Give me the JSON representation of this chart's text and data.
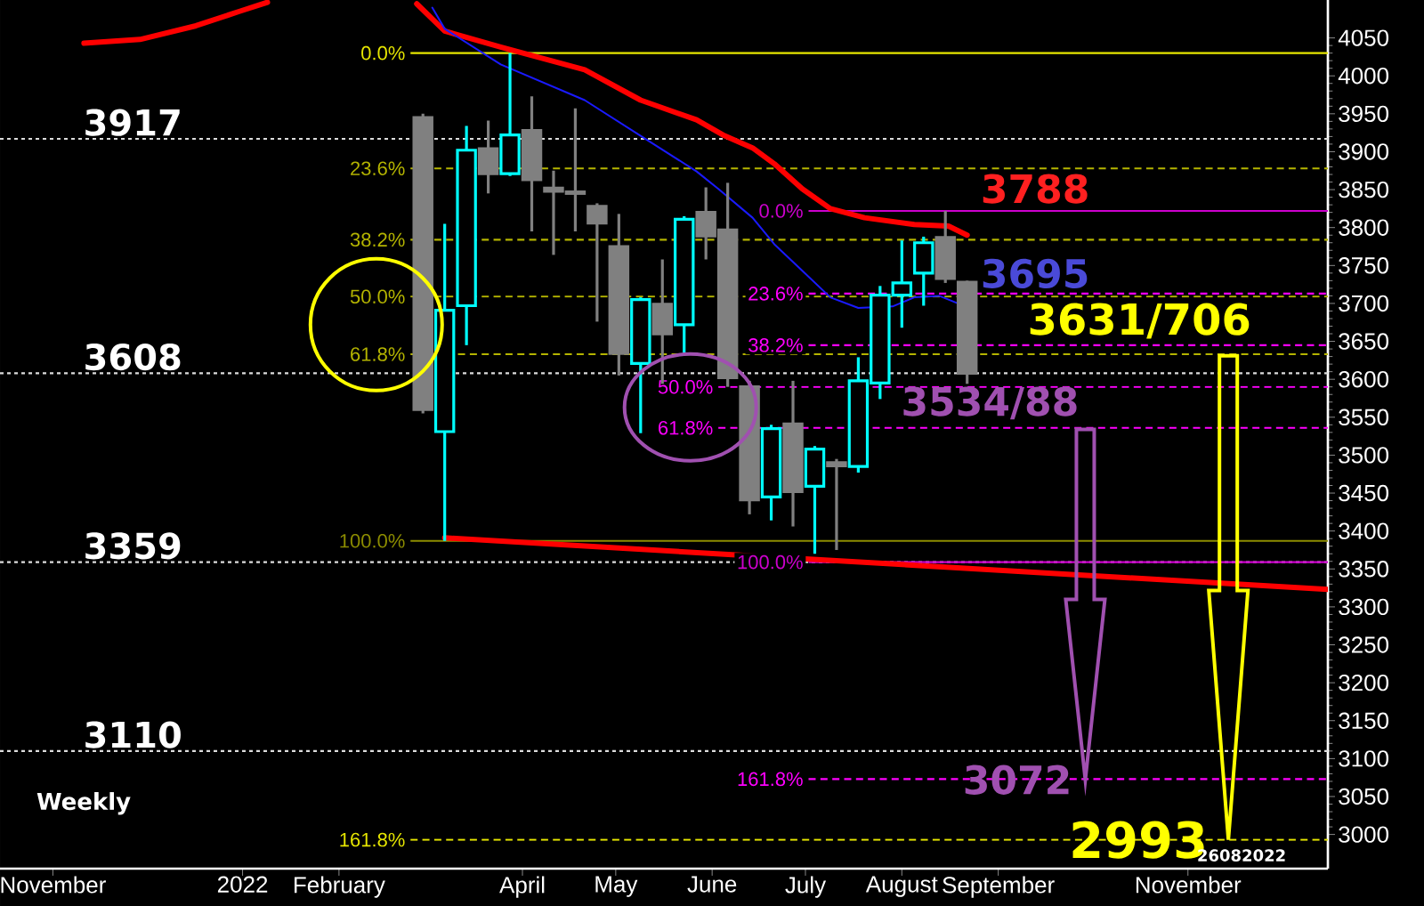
{
  "chart_data": {
    "type": "candlestick",
    "x": [
      "2022-02-28",
      "2022-03-07",
      "2022-03-14",
      "2022-03-21",
      "2022-03-28",
      "2022-04-04",
      "2022-04-11",
      "2022-04-18",
      "2022-04-25",
      "2022-05-02",
      "2022-05-09",
      "2022-05-16",
      "2022-05-23",
      "2022-05-30",
      "2022-06-06",
      "2022-06-13",
      "2022-06-20",
      "2022-06-27",
      "2022-07-04",
      "2022-07-11",
      "2022-07-18",
      "2022-07-25",
      "2022-08-01",
      "2022-08-08",
      "2022-08-15",
      "2022-08-22"
    ],
    "ohlc": [
      [
        3945,
        3950,
        3555,
        3560
      ],
      [
        3531,
        3805,
        3387,
        3691
      ],
      [
        3697,
        3934,
        3645,
        3902
      ],
      [
        3904,
        3941,
        3845,
        3871
      ],
      [
        3871,
        4030,
        3868,
        3922
      ],
      [
        3928,
        3973,
        3795,
        3863
      ],
      [
        3852,
        3875,
        3764,
        3848
      ],
      [
        3847,
        3957,
        3795,
        3845
      ],
      [
        3828,
        3832,
        3676,
        3806
      ],
      [
        3775,
        3818,
        3605,
        3634
      ],
      [
        3621,
        3708,
        3529,
        3705
      ],
      [
        3699,
        3758,
        3594,
        3660
      ],
      [
        3672,
        3815,
        3634,
        3811
      ],
      [
        3820,
        3853,
        3758,
        3789
      ],
      [
        3797,
        3859,
        3590,
        3602
      ],
      [
        3590,
        3598,
        3422,
        3441
      ],
      [
        3445,
        3540,
        3414,
        3535
      ],
      [
        3541,
        3598,
        3406,
        3452
      ],
      [
        3459,
        3512,
        3370,
        3508
      ],
      [
        3490,
        3495,
        3375,
        3486
      ],
      [
        3485,
        3629,
        3477,
        3598
      ],
      [
        3595,
        3723,
        3574,
        3711
      ],
      [
        3711,
        3783,
        3668,
        3727
      ],
      [
        3740,
        3788,
        3697,
        3780
      ],
      [
        3787,
        3822,
        3727,
        3733
      ],
      [
        3728,
        3730,
        3594,
        3608
      ]
    ],
    "colors": [
      "#808080",
      "#00ffff",
      "#00ffff",
      "#808080",
      "#00ffff",
      "#808080",
      "#808080",
      "#808080",
      "#808080",
      "#808080",
      "#00ffff",
      "#808080",
      "#00ffff",
      "#808080",
      "#808080",
      "#808080",
      "#00ffff",
      "#808080",
      "#00ffff",
      "#808080",
      "#00ffff",
      "#00ffff",
      "#00ffff",
      "#00ffff",
      "#808080",
      "#808080"
    ],
    "series": [
      {
        "type": "line",
        "color": "#ff0000",
        "x": [
          "2021-11-11",
          "2021-11-29",
          "2021-12-17",
          "2021-12-31",
          "2022-01-09",
          "2022-01-31",
          "2022-02-26",
          "2022-03-07",
          "2022-03-25",
          "2022-04-21",
          "2022-05-09",
          "2022-05-27",
          "2022-06-05",
          "2022-06-14",
          "2022-06-21",
          "2022-06-30",
          "2022-07-09",
          "2022-07-20",
          "2022-08-05",
          "2022-08-16",
          "2022-08-22"
        ],
        "values": [
          4043,
          4048,
          4066,
          4085,
          4097,
          null,
          4095,
          4059,
          4038,
          4008,
          3968,
          3942,
          3921,
          3905,
          3884,
          3851,
          3825,
          3813,
          3804,
          3802,
          3790
        ]
      },
      {
        "type": "line",
        "color": "#1a1aff",
        "x": [
          "2022-03-03",
          "2022-03-07",
          "2022-03-25",
          "2022-04-21",
          "2022-05-09",
          "2022-05-27",
          "2022-06-03",
          "2022-06-14",
          "2022-06-21",
          "2022-06-30",
          "2022-07-09",
          "2022-07-18",
          "2022-07-29",
          "2022-08-05",
          "2022-08-13",
          "2022-08-19"
        ],
        "values": [
          4090,
          4062,
          4015,
          3968,
          3921,
          3874,
          3851,
          3813,
          3778,
          3743,
          3708,
          3694,
          3696,
          3708,
          3710,
          3700
        ]
      },
      {
        "type": "line",
        "color": "#ff0000",
        "x": [
          "2022-03-07",
          "2022-12-16"
        ],
        "values": [
          3391,
          3323
        ]
      }
    ],
    "xlim": [
      "2021-10-15",
      "2022-12-16"
    ],
    "xticks": [
      {
        "value": "2021-11-01",
        "label": "November"
      },
      {
        "value": "2022-01-01",
        "label": "2022"
      },
      {
        "value": "2022-02-01",
        "label": "February"
      },
      {
        "value": "2022-04-01",
        "label": "April"
      },
      {
        "value": "2022-05-01",
        "label": "May"
      },
      {
        "value": "2022-06-01",
        "label": "June"
      },
      {
        "value": "2022-07-01",
        "label": "July"
      },
      {
        "value": "2022-08-01",
        "label": "August"
      },
      {
        "value": "2022-09-01",
        "label": "September"
      },
      {
        "value": "2022-11-01",
        "label": "November"
      }
    ],
    "ylim": [
      2955,
      4100
    ],
    "yticks": [
      3000,
      3050,
      3100,
      3150,
      3200,
      3250,
      3300,
      3350,
      3400,
      3450,
      3500,
      3550,
      3600,
      3650,
      3700,
      3750,
      3800,
      3850,
      3900,
      3950,
      4000,
      4050
    ],
    "ref_lines": [
      {
        "axis": "y",
        "value": 3917,
        "label": "3917",
        "color": "#dcdcdc",
        "line_style": "dotted"
      },
      {
        "axis": "y",
        "value": 3608,
        "label": "3608",
        "color": "#dcdcdc",
        "line_style": "dotted"
      },
      {
        "axis": "y",
        "value": 3359,
        "label": "3359",
        "color": "#dcdcdc",
        "line_style": "dotted"
      },
      {
        "axis": "y",
        "value": 3110,
        "label": "3110",
        "color": "#dcdcdc",
        "line_style": "dotted"
      },
      {
        "axis": "y",
        "value": 4030,
        "color": "#e6e600",
        "line_style": "solid"
      },
      {
        "axis": "y",
        "value": 3878,
        "color": "#b4b400",
        "line_style": "dashed"
      },
      {
        "axis": "y",
        "value": 3784,
        "color": "#b4b400",
        "line_style": "dashed"
      },
      {
        "axis": "y",
        "value": 3709,
        "color": "#b4b400",
        "line_style": "dashed"
      },
      {
        "axis": "y",
        "value": 3633,
        "color": "#b4b400",
        "line_style": "dashed"
      },
      {
        "axis": "y",
        "value": 3387,
        "color": "#8c8c00",
        "line_style": "solid"
      },
      {
        "axis": "y",
        "value": 2993,
        "color": "#e6e600",
        "line_style": "dashed"
      },
      {
        "axis": "y",
        "value": 3822,
        "color": "#cc00cc",
        "line_style": "solid"
      },
      {
        "axis": "y",
        "value": 3713,
        "color": "#ff00ff",
        "line_style": "dashed"
      },
      {
        "axis": "y",
        "value": 3645,
        "color": "#ff00ff",
        "line_style": "dashed"
      },
      {
        "axis": "y",
        "value": 3590,
        "color": "#ff00ff",
        "line_style": "dashed"
      },
      {
        "axis": "y",
        "value": 3536,
        "color": "#ff00ff",
        "line_style": "dashed"
      },
      {
        "axis": "y",
        "value": 3359,
        "color": "#cc00cc",
        "line_style": "solid"
      },
      {
        "axis": "y",
        "value": 3073,
        "color": "#ff00ff",
        "line_style": "dashed"
      }
    ],
    "annotations": [
      {
        "text": "3788",
        "x": "2022-08-22",
        "y": 3788
      },
      {
        "text": "3695",
        "x": "2022-08-22",
        "y": 3695
      },
      {
        "text": "3631/706",
        "x": "2022-11-14",
        "y": 3631
      },
      {
        "text": "3534/88",
        "x": "2022-09-29",
        "y": 3534
      },
      {
        "text": "3072",
        "x": "2022-09-29",
        "y": 3072
      },
      {
        "text": "2993",
        "x": "2022-11-14",
        "y": 2993
      },
      "Weekly",
      "26082022",
      {
        "text": "0.0%",
        "x": "2022-02-24",
        "y": 4030
      },
      {
        "text": "23.6%",
        "x": "2022-02-24",
        "y": 3878
      },
      {
        "text": "38.2%",
        "x": "2022-02-24",
        "y": 3784
      },
      {
        "text": "50.0%",
        "x": "2022-02-24",
        "y": 3709
      },
      {
        "text": "61.8%",
        "x": "2022-02-24",
        "y": 3633
      },
      {
        "text": "100.0%",
        "x": "2022-02-24",
        "y": 3387
      },
      {
        "text": "161.8%",
        "x": "2022-02-24",
        "y": 2993
      },
      {
        "text": "0.0%",
        "x": "2022-07-02",
        "y": 3822
      },
      {
        "text": "23.6%",
        "x": "2022-07-02",
        "y": 3713
      },
      {
        "text": "38.2%",
        "x": "2022-07-02",
        "y": 3645
      },
      {
        "text": "50.0%",
        "x": "2022-06-03",
        "y": 3590
      },
      {
        "text": "61.8%",
        "x": "2022-06-03",
        "y": 3536
      },
      {
        "text": "100.0%",
        "x": "2022-07-02",
        "y": 3359
      },
      {
        "text": "161.8%",
        "x": "2022-07-02",
        "y": 3073
      }
    ]
  }
}
